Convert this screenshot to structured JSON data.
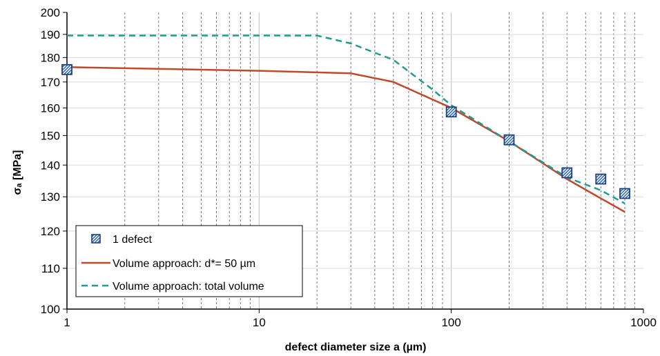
{
  "chart_data": {
    "type": "line",
    "x_scale": "log",
    "y_scale": "log",
    "xlim": [
      1,
      1000
    ],
    "ylim": [
      100,
      200
    ],
    "xlabel": "defect diameter size a (µm)",
    "ylabel": "σₐ [MPa]",
    "x_ticks": [
      "1",
      "10",
      "100",
      "1000"
    ],
    "y_ticks": [
      "100",
      "110",
      "120",
      "130",
      "140",
      "150",
      "160",
      "170",
      "180",
      "190",
      "200"
    ],
    "grid": true,
    "legend_position": "bottom-left",
    "series": [
      {
        "name": "1 defect",
        "kind": "markers",
        "color": "#1f3f7a",
        "points": [
          [
            1,
            175
          ],
          [
            100,
            158.5
          ],
          [
            200,
            148.5
          ],
          [
            400,
            137.5
          ],
          [
            600,
            135.5
          ],
          [
            800,
            131
          ]
        ]
      },
      {
        "name": "Volume approach: d*= 50 µm",
        "kind": "line",
        "color": "#c0492a",
        "points": [
          [
            1,
            176
          ],
          [
            10,
            174.5
          ],
          [
            30,
            173.5
          ],
          [
            50,
            170
          ],
          [
            100,
            160
          ],
          [
            200,
            148
          ],
          [
            400,
            135.5
          ],
          [
            600,
            129.5
          ],
          [
            800,
            125.5
          ]
        ]
      },
      {
        "name": "Volume approach: total volume",
        "kind": "dashed-line",
        "color": "#1f9b8f",
        "points": [
          [
            1,
            189.5
          ],
          [
            20,
            189.5
          ],
          [
            30,
            186
          ],
          [
            50,
            179
          ],
          [
            80,
            167
          ],
          [
            100,
            161
          ],
          [
            200,
            148
          ],
          [
            400,
            136
          ],
          [
            600,
            132
          ],
          [
            800,
            128
          ]
        ]
      }
    ]
  }
}
